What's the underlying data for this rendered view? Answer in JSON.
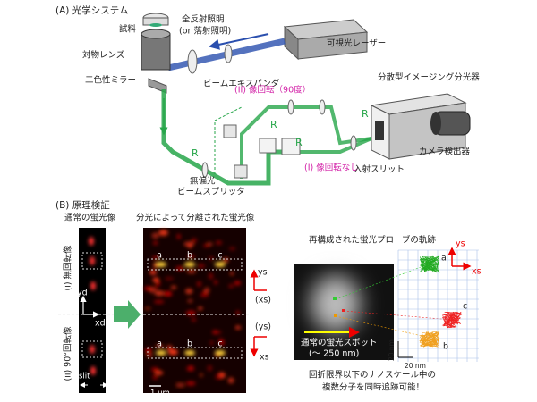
{
  "panel_a": {
    "title": "(A) 光学システム",
    "sample": "試料",
    "illumination": [
      "全反射照明",
      "(or 落射照明)"
    ],
    "laser": "可視光レーザー",
    "objective": "対物レンズ",
    "beam_expander": "ビームエキスパンダ",
    "dichroic_mirror": "二色性ミラー",
    "spectrometer": "分散型イメージング分光器",
    "path_ii": "(II) 像回転（90度）",
    "path_i": "(I) 像回転なし",
    "camera": "カメラ検出器",
    "slit": "入射スリット",
    "beam_splitter": [
      "無偏光",
      "ビームスプリッタ"
    ],
    "prism_label": "R"
  },
  "panel_b": {
    "title": "(B) 原理検証",
    "normal_image": "通常の蛍光像",
    "separated_image": "分光によって分離された蛍光像",
    "trajectory_title": "再構成された蛍光プローブの軌跡",
    "unrotated": "(i) 無回転像",
    "rotated": "(ii) 90°回転像",
    "yd": "yd",
    "xd": "xd",
    "slit": "slit",
    "scale_um": "1 μm",
    "spot_labels": [
      "a",
      "b",
      "c"
    ],
    "ys": "ys",
    "xs_paren": "(xs)",
    "ys_paren": "(ys)",
    "xs": "xs",
    "spot_caption": [
      "通常の蛍光スポット",
      "(～ 250 nm)"
    ],
    "scale_nm": "20 nm",
    "conclusion": [
      "回折限界以下のナノスケール中の",
      "複数分子を同時追跡可能！"
    ]
  }
}
